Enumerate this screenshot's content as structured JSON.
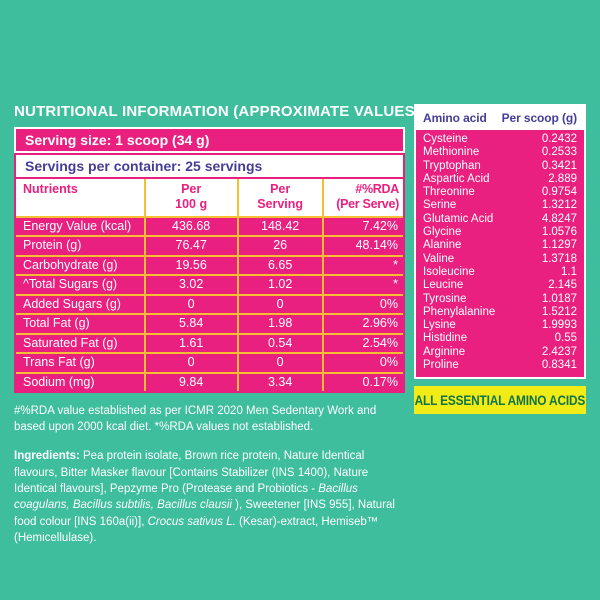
{
  "colors": {
    "bg": "#3EBE9D",
    "pink": "#E9207F",
    "yellow": "#F5BE33",
    "indigo": "#453D96",
    "badge_yellow": "#F1EC15",
    "badge_green": "#0F7448",
    "white": "#FFFFFF"
  },
  "title": "NUTRITIONAL INFORMATION (APPROXIMATE VALUES):",
  "serving": {
    "size_label": "Serving size: 1 scoop (34 g)",
    "per_container_label": "Servings per container: 25 servings"
  },
  "nutrition_table": {
    "headers": [
      "Nutrients",
      "Per\n100 g",
      "Per\nServing",
      "#%RDA\n(Per Serve)"
    ],
    "rows": [
      {
        "name": "Energy Value (kcal)",
        "per_100g": "436.68",
        "per_serving": "148.42",
        "rda": "7.42%"
      },
      {
        "name": "Protein (g)",
        "per_100g": "76.47",
        "per_serving": "26",
        "rda": "48.14%"
      },
      {
        "name": "Carbohydrate (g)",
        "per_100g": "19.56",
        "per_serving": "6.65",
        "rda": "*"
      },
      {
        "name": "^Total Sugars (g)",
        "per_100g": "3.02",
        "per_serving": "1.02",
        "rda": "*"
      },
      {
        "name": "Added Sugars (g)",
        "per_100g": "0",
        "per_serving": "0",
        "rda": "0%"
      },
      {
        "name": "Total Fat (g)",
        "per_100g": "5.84",
        "per_serving": "1.98",
        "rda": "2.96%"
      },
      {
        "name": "Saturated Fat (g)",
        "per_100g": "1.61",
        "per_serving": "0.54",
        "rda": "2.54%"
      },
      {
        "name": "Trans Fat (g)",
        "per_100g": "0",
        "per_serving": "0",
        "rda": "0%"
      },
      {
        "name": "Sodium (mg)",
        "per_100g": "9.84",
        "per_serving": "3.34",
        "rda": "0.17%"
      }
    ]
  },
  "amino_table": {
    "headers": [
      "Amino acid",
      "Per scoop (g)"
    ],
    "rows": [
      {
        "name": "Cysteine",
        "value": "0.2432"
      },
      {
        "name": "Methionine",
        "value": "0.2533"
      },
      {
        "name": "Tryptophan",
        "value": "0.3421"
      },
      {
        "name": "Aspartic Acid",
        "value": "2.889"
      },
      {
        "name": "Threonine",
        "value": "0.9754"
      },
      {
        "name": "Serine",
        "value": "1.3212"
      },
      {
        "name": "Glutamic Acid",
        "value": "4.8247"
      },
      {
        "name": "Glycine",
        "value": "1.0576"
      },
      {
        "name": "Alanine",
        "value": "1.1297"
      },
      {
        "name": "Valine",
        "value": "1.3718"
      },
      {
        "name": "Isoleucine",
        "value": "1.1"
      },
      {
        "name": "Leucine",
        "value": "2.145"
      },
      {
        "name": "Tyrosine",
        "value": "1.0187"
      },
      {
        "name": "Phenylalanine",
        "value": "1.5212"
      },
      {
        "name": "Lysine",
        "value": "1.9993"
      },
      {
        "name": "Histidine",
        "value": "0.55"
      },
      {
        "name": "Arginine",
        "value": "2.4237"
      },
      {
        "name": "Proline",
        "value": "0.8341"
      }
    ]
  },
  "badge": "ALL ESSENTIAL AMINO ACIDS",
  "footnote": "#%RDA value established as per ICMR 2020 Men Sedentary Work and based upon 2000 kcal diet. *%RDA values not established.",
  "ingredients_segments": [
    {
      "t": "Ingredients: ",
      "s": "bold"
    },
    {
      "t": "Pea protein isolate, Brown rice protein, Nature Identical flavours, Bitter Masker flavour [Contains Stabilizer (INS 1400), Nature Identical flavours], Pepzyme Pro (Protease and Probiotics - ",
      "s": ""
    },
    {
      "t": "Bacillus coagulans, Bacillus subtilis, Bacillus clausii",
      "s": "italic"
    },
    {
      "t": "), Sweetener [INS 955], Natural food colour [INS 160a(ii)], ",
      "s": ""
    },
    {
      "t": "Crocus sativus L.",
      "s": "italic"
    },
    {
      "t": " (Kesar)-extract, Hemiseb™ (Hemicellulase).",
      "s": ""
    }
  ]
}
